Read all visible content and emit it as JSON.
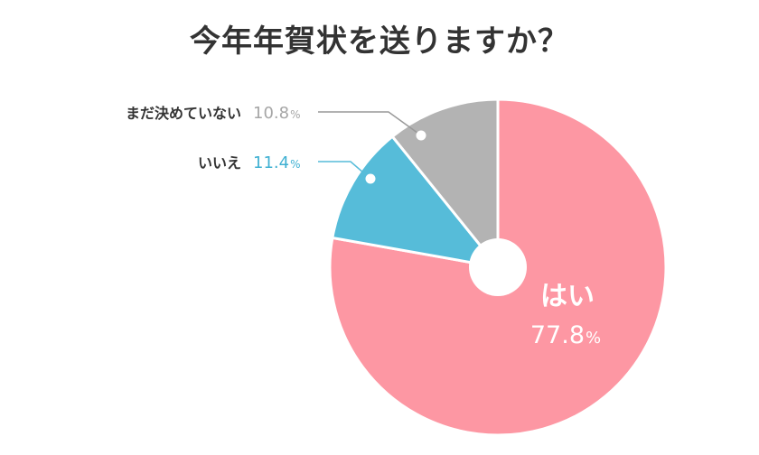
{
  "chart_data": {
    "type": "pie",
    "title": "今年年賀状を送りますか？",
    "unit": "%",
    "slices": [
      {
        "label": "はい",
        "value": 77.8,
        "value_text": "77.8",
        "color": "#fd97a3"
      },
      {
        "label": "いいえ",
        "value": 11.4,
        "value_text": "11.4",
        "color": "#56bcd9"
      },
      {
        "label": "まだ決めていない",
        "value": 10.8,
        "value_text": "10.8",
        "color": "#b3b3b3"
      }
    ]
  }
}
